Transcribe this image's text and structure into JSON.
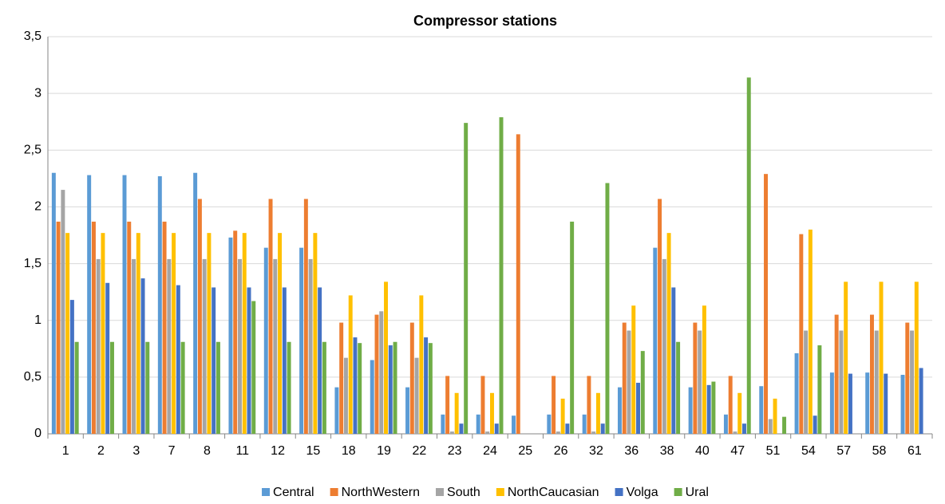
{
  "chart_data": {
    "type": "bar",
    "title": "Compressor stations",
    "categories": [
      "1",
      "2",
      "3",
      "7",
      "8",
      "11",
      "12",
      "15",
      "18",
      "19",
      "22",
      "23",
      "24",
      "25",
      "26",
      "32",
      "36",
      "38",
      "40",
      "47",
      "51",
      "54",
      "57",
      "58",
      "61"
    ],
    "series": [
      {
        "name": "Central",
        "color": "#5b9bd5",
        "values": [
          2.3,
          2.28,
          2.28,
          2.27,
          2.3,
          1.73,
          1.64,
          1.64,
          0.41,
          0.65,
          0.41,
          0.17,
          0.17,
          0.16,
          0.17,
          0.17,
          0.41,
          1.64,
          0.41,
          0.17,
          0.42,
          0.71,
          0.54,
          0.54,
          0.52
        ]
      },
      {
        "name": "NorthWestern",
        "color": "#ed7d31",
        "values": [
          1.87,
          1.87,
          1.87,
          1.87,
          2.07,
          1.79,
          2.07,
          2.07,
          0.98,
          1.05,
          0.98,
          0.51,
          0.51,
          2.64,
          0.51,
          0.51,
          0.98,
          2.07,
          0.98,
          0.51,
          2.29,
          1.76,
          1.05,
          1.05,
          0.98
        ]
      },
      {
        "name": "South",
        "color": "#a5a5a5",
        "values": [
          2.15,
          1.54,
          1.54,
          1.54,
          1.54,
          1.54,
          1.54,
          1.54,
          0.67,
          1.08,
          0.67,
          0.02,
          0.02,
          0,
          0.02,
          0.02,
          0.91,
          1.54,
          0.91,
          0.02,
          0.13,
          0.91,
          0.91,
          0.91,
          0.91
        ]
      },
      {
        "name": "NorthCaucasian",
        "color": "#ffc000",
        "values": [
          1.77,
          1.77,
          1.77,
          1.77,
          1.77,
          1.77,
          1.77,
          1.77,
          1.22,
          1.34,
          1.22,
          0.36,
          0.36,
          0,
          0.31,
          0.36,
          1.13,
          1.77,
          1.13,
          0.36,
          0.31,
          1.8,
          1.34,
          1.34,
          1.34
        ]
      },
      {
        "name": "Volga",
        "color": "#4472c4",
        "values": [
          1.18,
          1.33,
          1.37,
          1.31,
          1.29,
          1.29,
          1.29,
          1.29,
          0.85,
          0.78,
          0.85,
          0.09,
          0.09,
          0,
          0.09,
          0.09,
          0.45,
          1.29,
          0.43,
          0.09,
          0,
          0.16,
          0.53,
          0.53,
          0.58
        ]
      },
      {
        "name": "Ural",
        "color": "#70ad47",
        "values": [
          0.81,
          0.81,
          0.81,
          0.81,
          0.81,
          1.17,
          0.81,
          0.81,
          0.8,
          0.81,
          0.8,
          2.74,
          2.79,
          0,
          1.87,
          2.21,
          0.73,
          0.81,
          0.46,
          3.14,
          0.15,
          0.78,
          0,
          0,
          0
        ]
      }
    ],
    "ylim": [
      0,
      3.5
    ],
    "yticks": [
      0,
      {
        "value": 0.5,
        "label": "0,5"
      },
      1,
      {
        "value": 1.5,
        "label": "1,5"
      },
      2,
      {
        "value": 2.5,
        "label": "2,5"
      },
      3,
      {
        "value": 3.5,
        "label": "3,5"
      }
    ],
    "grid": true,
    "legend": "bottom"
  }
}
